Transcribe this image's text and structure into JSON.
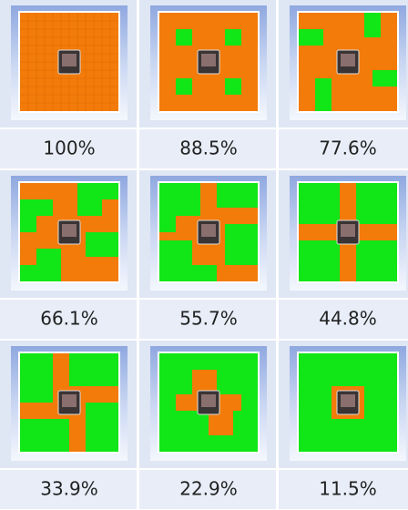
{
  "tiles": [
    {
      "label": "100%"
    },
    {
      "label": "88.5%"
    },
    {
      "label": "77.6%"
    },
    {
      "label": "66.1%"
    },
    {
      "label": "55.7%"
    },
    {
      "label": "44.8%"
    },
    {
      "label": "33.9%"
    },
    {
      "label": "22.9%"
    },
    {
      "label": "11.5%"
    }
  ]
}
